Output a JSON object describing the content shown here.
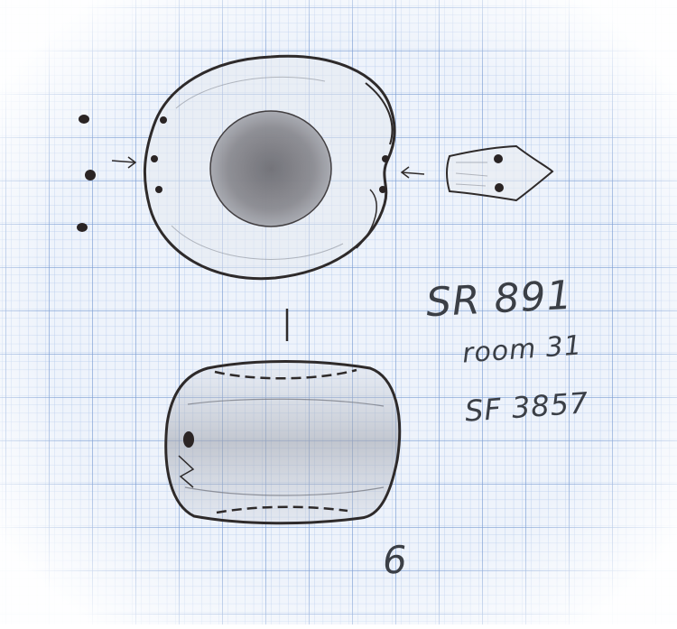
{
  "labels": {
    "context_number": "SR 891",
    "room": "room 31",
    "small_find": "SF 3857",
    "object_number": "6"
  },
  "colors": {
    "grid_minor": "#a9c1e6",
    "grid_major": "#6f93cf",
    "paper": "#eef3fb",
    "pencil": "#2e2a2a"
  }
}
